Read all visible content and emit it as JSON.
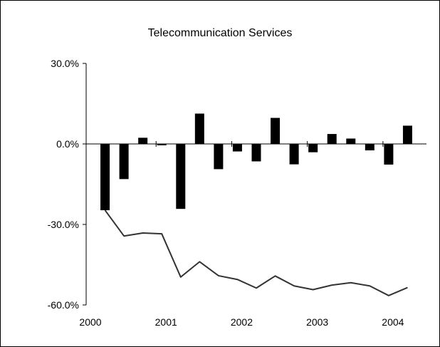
{
  "chart_data": {
    "type": "bar",
    "title": "Telecommunication Services",
    "xlabel": "",
    "ylabel": "",
    "ylim": [
      -0.6,
      0.3
    ],
    "y_ticks": [
      0.3,
      0.0,
      -0.3,
      -0.6
    ],
    "y_tick_labels": [
      "30.0%",
      "0.0%",
      "-30.0%",
      "-60.0%"
    ],
    "x_tick_labels": [
      "2000",
      "2001",
      "2002",
      "2003",
      "2004"
    ],
    "x_years": [
      2000,
      2001,
      2002,
      2003,
      2004
    ],
    "grid": false,
    "legend": "none",
    "categories": [
      "2000 Q2",
      "2000 Q3",
      "2000 Q4",
      "2001 Q1",
      "2001 Q2",
      "2001 Q3",
      "2001 Q4",
      "2002 Q1",
      "2002 Q2",
      "2002 Q3",
      "2002 Q4",
      "2003 Q1",
      "2003 Q2",
      "2003 Q3",
      "2003 Q4",
      "2004 Q1",
      "2004 Q2"
    ],
    "x": [
      2000.25,
      2000.5,
      2000.75,
      2001.0,
      2001.25,
      2001.5,
      2001.75,
      2002.0,
      2002.25,
      2002.5,
      2002.75,
      2003.0,
      2003.25,
      2003.5,
      2003.75,
      2004.0,
      2004.25
    ],
    "series": [
      {
        "type": "bar",
        "values": [
          -0.247,
          -0.131,
          0.023,
          -0.005,
          -0.242,
          0.113,
          -0.094,
          -0.028,
          -0.065,
          0.097,
          -0.076,
          -0.031,
          0.037,
          0.02,
          -0.024,
          -0.077,
          0.068
        ]
      },
      {
        "type": "line",
        "values": [
          -0.247,
          -0.343,
          -0.332,
          -0.335,
          -0.496,
          -0.439,
          -0.491,
          -0.505,
          -0.537,
          -0.492,
          -0.529,
          -0.543,
          -0.526,
          -0.517,
          -0.529,
          -0.565,
          -0.535
        ]
      }
    ],
    "colors": {
      "bar": "#000000",
      "line": "#333333",
      "axis": "#000000"
    }
  }
}
